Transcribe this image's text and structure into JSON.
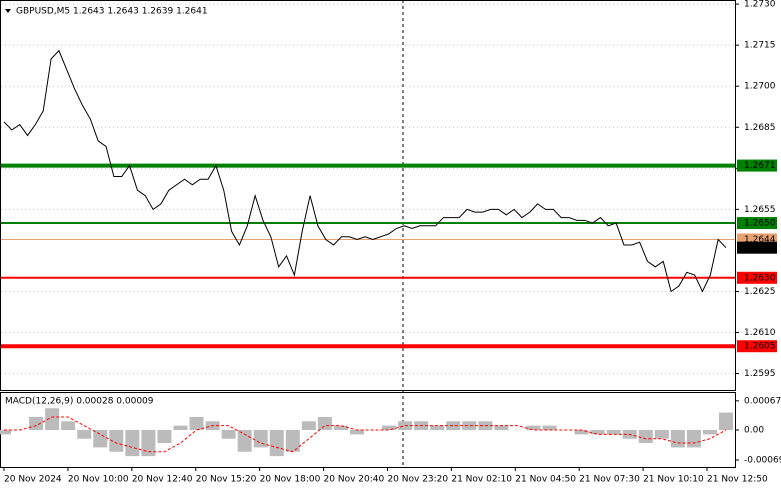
{
  "chart_data": [
    {
      "type": "line",
      "title": "GBPUSD,M5  1.2643 1.2643 1.2639 1.2641",
      "color": "#000000",
      "ylim": [
        1.2589,
        1.27315
      ],
      "yticks": [
        {
          "value": 1.273,
          "label": "1.2730"
        },
        {
          "value": 1.2715,
          "label": "1.2715"
        },
        {
          "value": 1.27,
          "label": "1.2700"
        },
        {
          "value": 1.2685,
          "label": "1.2685"
        },
        {
          "value": 1.267,
          "label": "1.2670"
        },
        {
          "value": 1.2655,
          "label": "1.2655"
        },
        {
          "value": 1.2625,
          "label": "1.2625"
        },
        {
          "value": 1.261,
          "label": "1.2610"
        },
        {
          "value": 1.2595,
          "label": "1.2595"
        }
      ],
      "grid": true,
      "time_labels": [
        "20 Nov 2024",
        "20 Nov 10:00",
        "20 Nov 12:40",
        "20 Nov 15:20",
        "20 Nov 18:00",
        "20 Nov 20:40",
        "20 Nov 23:20",
        "21 Nov 02:10",
        "21 Nov 04:50",
        "21 Nov 07:30",
        "21 Nov 10:10",
        "21 Nov 12:50"
      ],
      "values": [
        1.2687,
        1.2684,
        1.2686,
        1.2682,
        1.2686,
        1.2691,
        1.271,
        1.2713,
        1.2706,
        1.2699,
        1.2693,
        1.2688,
        1.268,
        1.2678,
        1.2667,
        1.2667,
        1.2671,
        1.2662,
        1.266,
        1.2655,
        1.2657,
        1.2662,
        1.2664,
        1.2666,
        1.2664,
        1.2666,
        1.2666,
        1.2671,
        1.2662,
        1.2647,
        1.2642,
        1.2649,
        1.266,
        1.2651,
        1.2645,
        1.2634,
        1.2638,
        1.2631,
        1.2647,
        1.266,
        1.2649,
        1.2644,
        1.2642,
        1.2645,
        1.2645,
        1.2644,
        1.2645,
        1.2644,
        1.2645,
        1.2646,
        1.2648,
        1.2649,
        1.2648,
        1.2649,
        1.2649,
        1.2649,
        1.2652,
        1.2652,
        1.2652,
        1.2655,
        1.2654,
        1.2654,
        1.2655,
        1.2655,
        1.2653,
        1.2655,
        1.2652,
        1.2654,
        1.2657,
        1.2655,
        1.2655,
        1.2652,
        1.2652,
        1.2651,
        1.2651,
        1.265,
        1.2652,
        1.2649,
        1.265,
        1.2642,
        1.2642,
        1.2643,
        1.2636,
        1.2634,
        1.2636,
        1.2625,
        1.2627,
        1.2632,
        1.2631,
        1.2625,
        1.2631,
        1.2644,
        1.2641
      ],
      "levels": [
        {
          "value": 1.2671,
          "label": "1.2671",
          "color": "#008000",
          "style": "thick"
        },
        {
          "value": 1.265,
          "label": "1.2650",
          "color": "#008000",
          "style": "medium"
        },
        {
          "value": 1.2644,
          "label": "1.2644",
          "color": "#e8a070",
          "style": "thin"
        },
        {
          "value": 1.2641,
          "label": "1.2641",
          "color": "#000000",
          "style": "none"
        },
        {
          "value": 1.263,
          "label": "1.2630",
          "color": "#ff0000",
          "style": "medium"
        },
        {
          "value": 1.2605,
          "label": "1.2605",
          "color": "#ff0000",
          "style": "thick"
        }
      ]
    },
    {
      "type": "macd",
      "title": "MACD(12,26,9) 0.00028 0.00009",
      "ylim": [
        -0.00085,
        0.00085
      ],
      "yticks": [
        0.00067,
        {
          "value": 0,
          "label": "0.00"
        },
        -0.00069
      ],
      "series": [
        {
          "color": "#bbbbbb",
          "values": [
            -0.0001,
            0,
            0.0003,
            0.0005,
            0.0002,
            -0.0002,
            -0.0004,
            -0.0005,
            -0.0006,
            -0.0006,
            -0.0003,
            0.0001,
            0.0003,
            0.0002,
            -0.0002,
            -0.0005,
            -0.0004,
            -0.0006,
            -0.0005,
            0.0002,
            0.0003,
            0.0001,
            -0.0001,
            0,
            0.0001,
            0.0002,
            0.0002,
            0.0001,
            0.0002,
            0.0002,
            0.0002,
            0.0001,
            0,
            0.0001,
            0.0001,
            0,
            -0.0001,
            -0.0001,
            -0.0001,
            -0.0002,
            -0.0003,
            -0.0002,
            -0.0004,
            -0.0004,
            -0.0001,
            0.0004
          ]
        },
        {
          "color": "#ff0000",
          "values": [
            0,
            0,
            0.0001,
            0.0003,
            0.0003,
            0.0001,
            -0.0001,
            -0.0003,
            -0.0004,
            -0.0005,
            -0.0005,
            -0.0003,
            0,
            0.0001,
            0.0001,
            -0.0001,
            -0.0003,
            -0.0004,
            -0.0005,
            -0.0002,
            0.0001,
            0.0001,
            0,
            0,
            0,
            0.0001,
            0.0001,
            0.0001,
            0.0001,
            0.0001,
            0.0001,
            0.0001,
            0.0001,
            0,
            0,
            0,
            0,
            -0.0001,
            -0.0001,
            -0.0001,
            -0.0002,
            -0.0002,
            -0.0003,
            -0.0003,
            -0.0002,
            0
          ]
        }
      ]
    }
  ]
}
